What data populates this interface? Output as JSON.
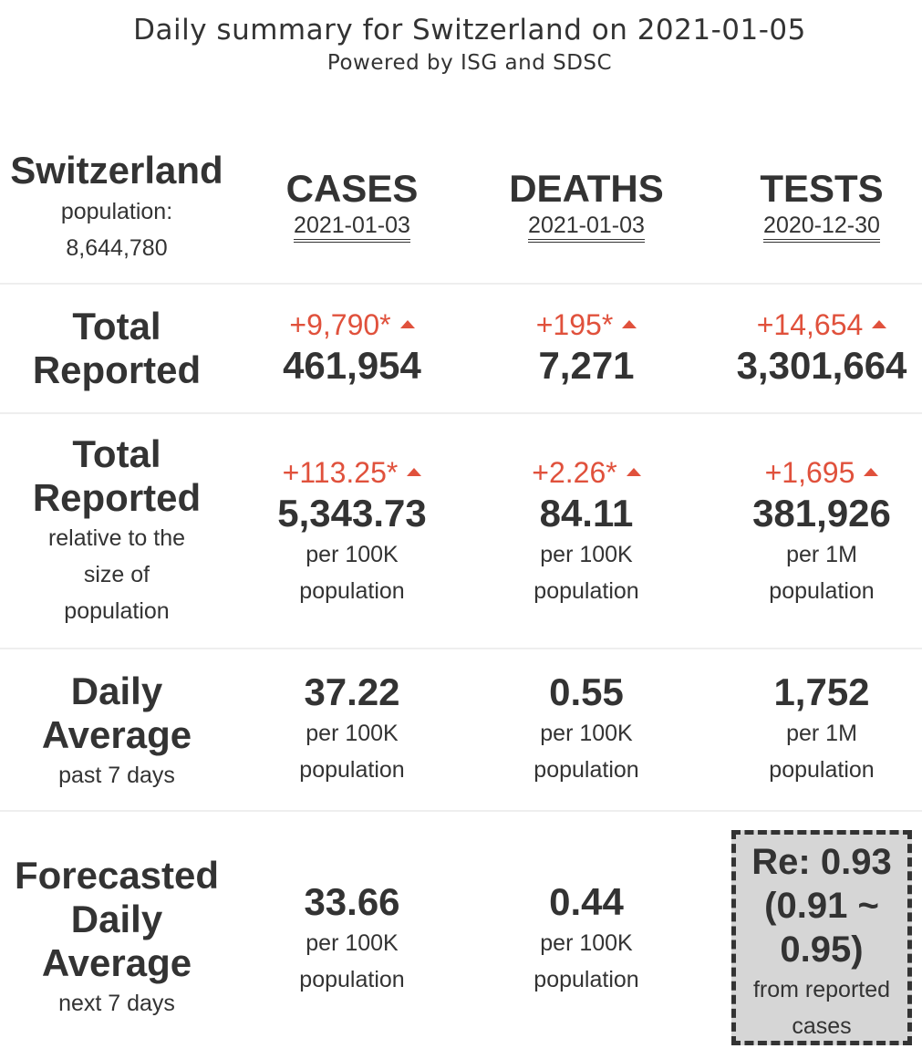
{
  "header": {
    "title": "Daily summary for Switzerland on 2021-01-05",
    "subtitle": "Powered by ISG and SDSC"
  },
  "country": {
    "name": "Switzerland",
    "population_label": "population:",
    "population_value": "8,644,780"
  },
  "columns": [
    {
      "label": "CASES",
      "date": "2021-01-03"
    },
    {
      "label": "DEATHS",
      "date": "2021-01-03"
    },
    {
      "label": "TESTS",
      "date": "2020-12-30"
    }
  ],
  "rows": {
    "total_reported": {
      "label_line1": "Total",
      "label_line2": "Reported",
      "cases": {
        "delta": "+9,790*",
        "value": "461,954"
      },
      "deaths": {
        "delta": "+195*",
        "value": "7,271"
      },
      "tests": {
        "delta": "+14,654",
        "value": "3,301,664"
      }
    },
    "relative": {
      "label_line1": "Total",
      "label_line2": "Reported",
      "sub_line1": "relative to the",
      "sub_line2": "size of",
      "sub_line3": "population",
      "cases": {
        "delta": "+113.25*",
        "value": "5,343.73",
        "unit_line1": "per 100K",
        "unit_line2": "population"
      },
      "deaths": {
        "delta": "+2.26*",
        "value": "84.11",
        "unit_line1": "per 100K",
        "unit_line2": "population"
      },
      "tests": {
        "delta": "+1,695",
        "value": "381,926",
        "unit_line1": "per 1M",
        "unit_line2": "population"
      }
    },
    "daily_average": {
      "label_line1": "Daily",
      "label_line2": "Average",
      "sub_line1": "past 7 days",
      "cases": {
        "value": "37.22",
        "unit_line1": "per 100K",
        "unit_line2": "population"
      },
      "deaths": {
        "value": "0.55",
        "unit_line1": "per 100K",
        "unit_line2": "population"
      },
      "tests": {
        "value": "1,752",
        "unit_line1": "per 1M",
        "unit_line2": "population"
      }
    },
    "forecast": {
      "label_line1": "Forecasted",
      "label_line2": "Daily",
      "label_line3": "Average",
      "sub_line1": "next 7 days",
      "cases": {
        "value": "33.66",
        "unit_line1": "per 100K",
        "unit_line2": "population"
      },
      "deaths": {
        "value": "0.44",
        "unit_line1": "per 100K",
        "unit_line2": "population"
      },
      "re": {
        "line1": "Re: 0.93",
        "line2": "(0.91 ~",
        "line3": "0.95)",
        "source_line1": "from reported",
        "source_line2": "cases"
      }
    }
  },
  "colors": {
    "text": "#333333",
    "delta_red": "#e0513c",
    "separator": "#eeeeee",
    "re_box_bg": "#d6d6d6"
  },
  "icons": {
    "delta_indicator": "triangle-up-icon"
  }
}
